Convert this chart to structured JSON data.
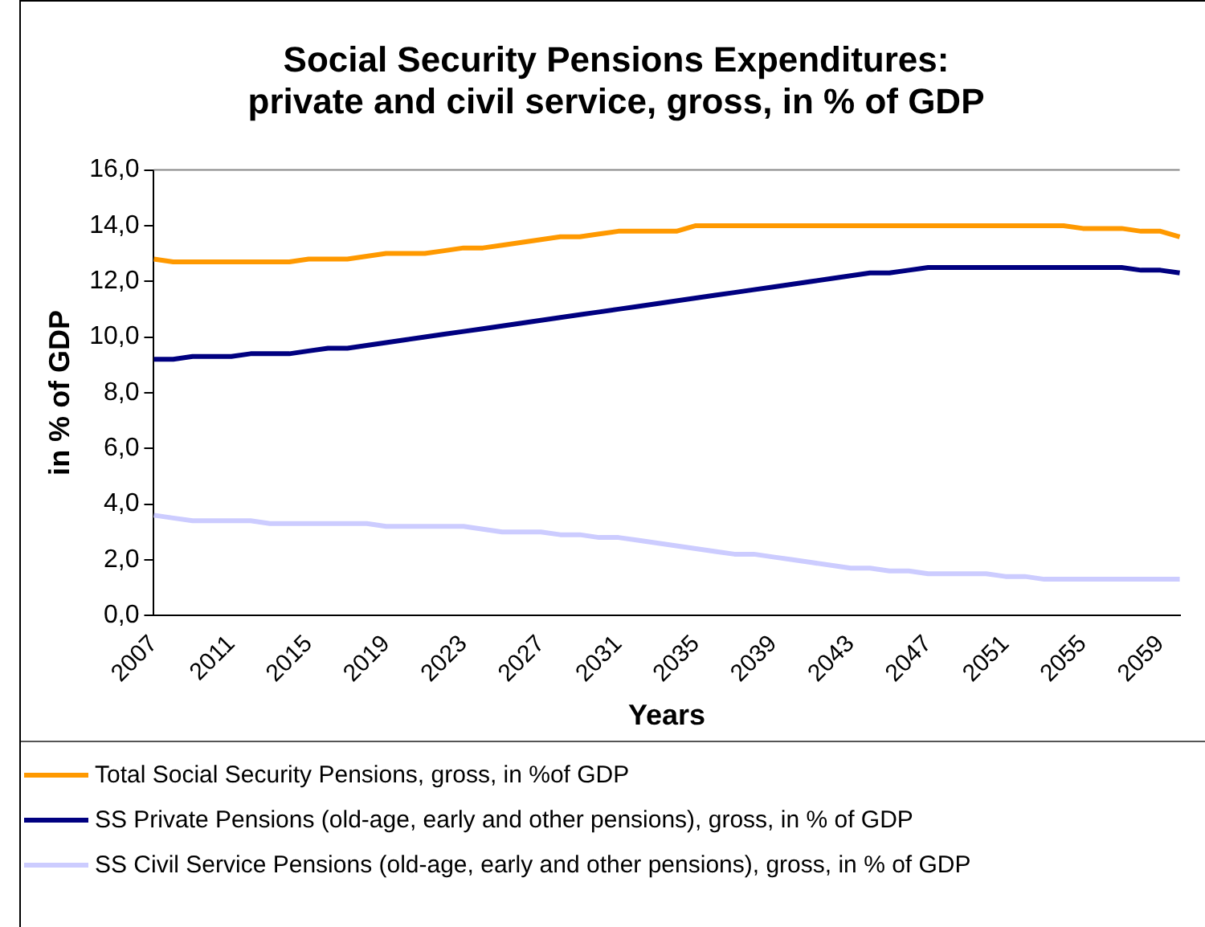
{
  "chart_data": {
    "type": "line",
    "title": "Social Security Pensions Expenditures:\nprivate and civil service, gross, in % of GDP",
    "xlabel": "Years",
    "ylabel": "in % of GDP",
    "categories": [
      "2007",
      null,
      null,
      null,
      "2011",
      null,
      null,
      null,
      "2015",
      null,
      null,
      null,
      "2019",
      null,
      null,
      null,
      "2023",
      null,
      null,
      null,
      "2027",
      null,
      null,
      null,
      "2031",
      null,
      null,
      null,
      "2035",
      null,
      null,
      null,
      "2039",
      null,
      null,
      null,
      "2043",
      null,
      null,
      null,
      "2047",
      null,
      null,
      null,
      "2051",
      null,
      null,
      null,
      "2055",
      null,
      null,
      null,
      "2059",
      null
    ],
    "series": [
      {
        "name": "Total Social Security Pensions, gross, in %of GDP",
        "color": "#ff9900",
        "values": [
          12.8,
          12.7,
          12.7,
          12.7,
          12.7,
          12.7,
          12.7,
          12.7,
          12.8,
          12.8,
          12.8,
          12.9,
          13.0,
          13.0,
          13.0,
          13.1,
          13.2,
          13.2,
          13.3,
          13.4,
          13.5,
          13.6,
          13.6,
          13.7,
          13.8,
          13.8,
          13.8,
          13.8,
          14.0,
          14.0,
          14.0,
          14.0,
          14.0,
          14.0,
          14.0,
          14.0,
          14.0,
          14.0,
          14.0,
          14.0,
          14.0,
          14.0,
          14.0,
          14.0,
          14.0,
          14.0,
          14.0,
          14.0,
          13.9,
          13.9,
          13.9,
          13.8,
          13.8,
          13.6
        ]
      },
      {
        "name": "SS Private Pensions (old-age, early and other pensions), gross, in % of GDP",
        "color": "#000080",
        "values": [
          9.2,
          9.2,
          9.3,
          9.3,
          9.3,
          9.4,
          9.4,
          9.4,
          9.5,
          9.6,
          9.6,
          9.7,
          9.8,
          9.9,
          10.0,
          10.1,
          10.2,
          10.3,
          10.4,
          10.5,
          10.6,
          10.7,
          10.8,
          10.9,
          11.0,
          11.1,
          11.2,
          11.3,
          11.4,
          11.5,
          11.6,
          11.7,
          11.8,
          11.9,
          12.0,
          12.1,
          12.2,
          12.3,
          12.3,
          12.4,
          12.5,
          12.5,
          12.5,
          12.5,
          12.5,
          12.5,
          12.5,
          12.5,
          12.5,
          12.5,
          12.5,
          12.4,
          12.4,
          12.3
        ]
      },
      {
        "name": "SS Civil Service Pensions (old-age, early and other pensions), gross, in % of GDP",
        "color": "#ccccff",
        "values": [
          3.6,
          3.5,
          3.4,
          3.4,
          3.4,
          3.4,
          3.3,
          3.3,
          3.3,
          3.3,
          3.3,
          3.3,
          3.2,
          3.2,
          3.2,
          3.2,
          3.2,
          3.1,
          3.0,
          3.0,
          3.0,
          2.9,
          2.9,
          2.8,
          2.8,
          2.7,
          2.6,
          2.5,
          2.4,
          2.3,
          2.2,
          2.2,
          2.1,
          2.0,
          1.9,
          1.8,
          1.7,
          1.7,
          1.6,
          1.6,
          1.5,
          1.5,
          1.5,
          1.5,
          1.4,
          1.4,
          1.3,
          1.3,
          1.3,
          1.3,
          1.3,
          1.3,
          1.3,
          1.3
        ]
      }
    ],
    "ylim": [
      0,
      16
    ],
    "yticks": [
      {
        "value": 0,
        "label": "0,0"
      },
      {
        "value": 2,
        "label": "2,0"
      },
      {
        "value": 4,
        "label": "4,0"
      },
      {
        "value": 6,
        "label": "6,0"
      },
      {
        "value": 8,
        "label": "8,0"
      },
      {
        "value": 10,
        "label": "10,0"
      },
      {
        "value": 12,
        "label": "12,0"
      },
      {
        "value": 14,
        "label": "14,0"
      },
      {
        "value": 16,
        "label": "16,0"
      }
    ],
    "grid": false,
    "legend": "bottom",
    "marker": "none",
    "line_style": "solid"
  }
}
